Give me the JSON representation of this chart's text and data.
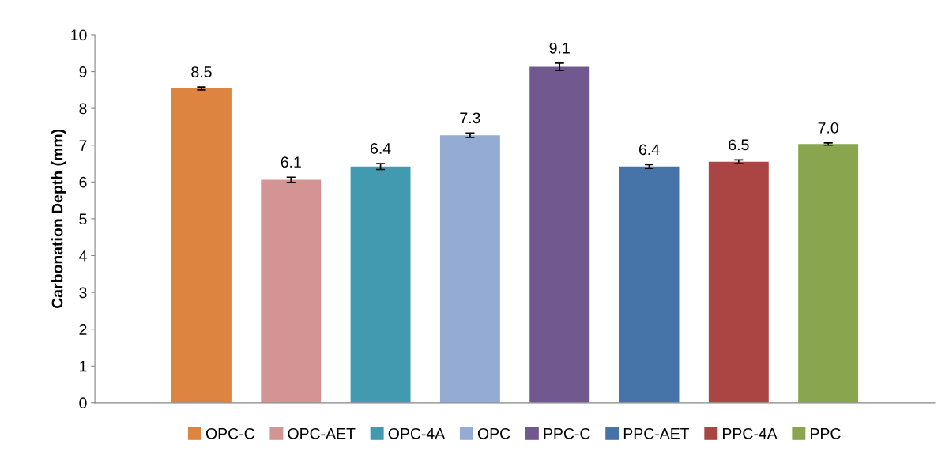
{
  "chart_data": {
    "type": "bar",
    "ylabel": "Carbonation Depth (mm)",
    "categories": [
      null
    ],
    "series": [
      {
        "name": "OPC-C",
        "color": "#dd8441",
        "values": [
          8.54
        ],
        "errors": [
          0.04
        ],
        "value_labels": [
          "8.5"
        ]
      },
      {
        "name": "OPC-AET",
        "color": "#d49494",
        "values": [
          6.06
        ],
        "errors": [
          0.07
        ],
        "value_labels": [
          "6.1"
        ]
      },
      {
        "name": "OPC-4A",
        "color": "#419aaf",
        "values": [
          6.42
        ],
        "errors": [
          0.08
        ],
        "value_labels": [
          "6.4"
        ]
      },
      {
        "name": "OPC",
        "color": "#94abd4",
        "values": [
          7.27
        ],
        "errors": [
          0.06
        ],
        "value_labels": [
          "7.3"
        ]
      },
      {
        "name": "PPC-C",
        "color": "#71588f",
        "values": [
          9.13
        ],
        "errors": [
          0.1
        ],
        "value_labels": [
          "9.1"
        ]
      },
      {
        "name": "PPC-AET",
        "color": "#4674a8",
        "values": [
          6.42
        ],
        "errors": [
          0.05
        ],
        "value_labels": [
          "6.4"
        ]
      },
      {
        "name": "PPC-4A",
        "color": "#ab4543",
        "values": [
          6.55
        ],
        "errors": [
          0.05
        ],
        "value_labels": [
          "6.5"
        ]
      },
      {
        "name": "PPC",
        "color": "#89a54e",
        "values": [
          7.03
        ],
        "errors": [
          0.03
        ],
        "value_labels": [
          "7.0"
        ]
      }
    ],
    "ylim": [
      0,
      10
    ],
    "yticks": [
      0,
      1,
      2,
      3,
      4,
      5,
      6,
      7,
      8,
      9,
      10
    ],
    "grid": false,
    "legend": "bottom"
  }
}
